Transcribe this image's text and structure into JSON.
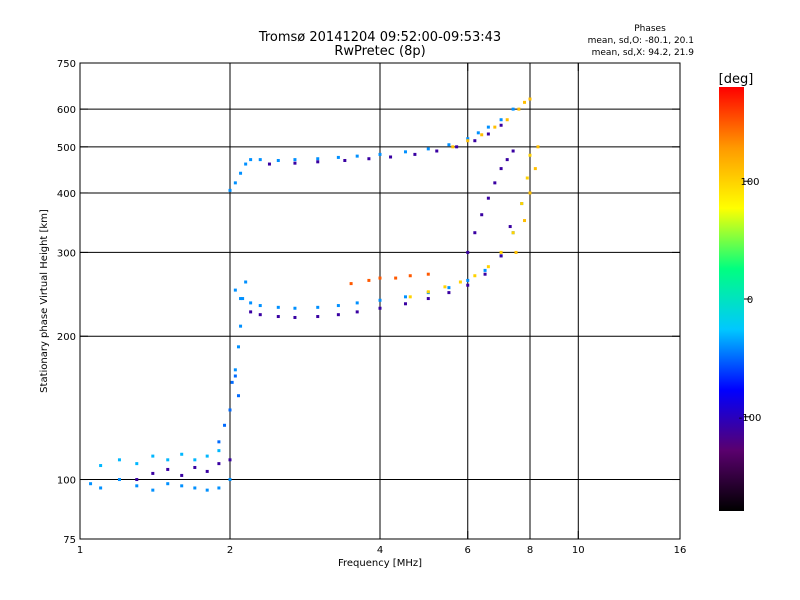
{
  "chart_data": {
    "type": "scatter",
    "title": "Tromsø 20141204 09:52:00-09:53:43",
    "subtitle": "RwPretec (8p)",
    "xlabel": "Frequency [MHz]",
    "ylabel": "Stationary phase Virtual Height [km]",
    "x_scale": "log2",
    "y_scale": "log",
    "xlim": [
      1,
      16
    ],
    "ylim": [
      75,
      750
    ],
    "x_ticks": [
      1,
      2,
      4,
      6,
      8,
      10,
      16
    ],
    "y_ticks": [
      75,
      100,
      200,
      300,
      400,
      500,
      600,
      750
    ],
    "x_grid": [
      2,
      4,
      6,
      8,
      10
    ],
    "y_grid": [
      100,
      200,
      300,
      400,
      500,
      600
    ],
    "grid": true,
    "phases_info": {
      "heading": "Phases",
      "line_o": "mean, sd,O: -80.1, 20.1",
      "line_x": "mean, sd,X:  94.2, 21.9"
    },
    "colorbar": {
      "label": "[deg]",
      "range": [
        -180,
        180
      ],
      "ticks": [
        100,
        0,
        -100
      ],
      "colormap": [
        "#000000",
        "#5a006e",
        "#0000ff",
        "#00c8ff",
        "#00ff80",
        "#ffff00",
        "#ff9900",
        "#ff0000"
      ]
    },
    "series": [
      {
        "x": [
          1.05,
          1.1,
          1.2,
          1.3,
          1.4,
          1.5,
          1.6,
          1.7,
          1.8,
          1.9,
          2.0
        ],
        "y": [
          98,
          96,
          100,
          97,
          95,
          98,
          97,
          96,
          95,
          96,
          100
        ],
        "phase": -40
      },
      {
        "x": [
          1.1,
          1.2,
          1.3,
          1.4,
          1.5,
          1.6,
          1.7,
          1.8,
          1.9
        ],
        "y": [
          107,
          110,
          108,
          112,
          110,
          113,
          110,
          112,
          115
        ],
        "phase": -30
      },
      {
        "x": [
          1.3,
          1.4,
          1.5,
          1.6,
          1.7,
          1.8,
          1.9,
          2.0
        ],
        "y": [
          100,
          103,
          105,
          102,
          106,
          104,
          108,
          110
        ],
        "phase": -110
      },
      {
        "x": [
          1.9,
          1.95,
          2.0,
          2.02,
          2.05,
          2.08
        ],
        "y": [
          120,
          130,
          140,
          160,
          165,
          150
        ],
        "phase": -50
      },
      {
        "x": [
          2.05,
          2.08,
          2.1,
          2.12,
          2.15
        ],
        "y": [
          170,
          190,
          210,
          240,
          260
        ],
        "phase": -40
      },
      {
        "x": [
          2.0,
          2.05,
          2.1,
          2.15,
          2.2
        ],
        "y": [
          405,
          420,
          440,
          460,
          470
        ],
        "phase": -40
      },
      {
        "x": [
          2.3,
          2.5,
          2.7,
          3.0,
          3.3,
          3.6,
          4.0,
          4.5,
          5.0,
          5.5,
          6.0,
          6.3,
          6.6,
          7.0,
          7.4
        ],
        "y": [
          470,
          468,
          470,
          472,
          475,
          478,
          482,
          488,
          495,
          505,
          520,
          535,
          550,
          570,
          600
        ],
        "phase": -40
      },
      {
        "x": [
          2.4,
          2.7,
          3.0,
          3.4,
          3.8,
          4.2,
          4.7,
          5.2,
          5.7,
          6.2,
          6.6,
          7.0
        ],
        "y": [
          460,
          462,
          465,
          468,
          472,
          476,
          482,
          490,
          500,
          515,
          532,
          555
        ],
        "phase": -110
      },
      {
        "x": [
          5.6,
          6.0,
          6.4,
          6.8,
          7.2,
          7.6,
          7.8,
          8.0
        ],
        "y": [
          500,
          515,
          530,
          550,
          570,
          600,
          620,
          630
        ],
        "phase": 110
      },
      {
        "x": [
          2.05,
          2.1,
          2.2,
          2.3,
          2.5,
          2.7,
          3.0,
          3.3,
          3.6,
          4.0,
          4.5,
          5.0,
          5.5,
          6.0,
          6.5,
          7.0,
          7.4,
          7.7
        ],
        "y": [
          250,
          240,
          235,
          232,
          230,
          229,
          230,
          232,
          235,
          238,
          242,
          247,
          253,
          262,
          275,
          295,
          330,
          380
        ],
        "phase": -40
      },
      {
        "x": [
          2.2,
          2.3,
          2.5,
          2.7,
          3.0,
          3.3,
          3.6,
          4.0,
          4.5,
          5.0,
          5.5,
          6.0,
          6.5,
          7.0,
          7.3
        ],
        "y": [
          225,
          222,
          220,
          219,
          220,
          222,
          225,
          229,
          234,
          240,
          247,
          256,
          270,
          295,
          340
        ],
        "phase": -110
      },
      {
        "x": [
          3.5,
          3.8,
          4.0,
          4.3,
          4.6,
          5.0
        ],
        "y": [
          258,
          262,
          265,
          265,
          268,
          270
        ],
        "phase": 150
      },
      {
        "x": [
          4.6,
          5.0,
          5.4,
          5.8,
          6.2,
          6.6,
          7.0,
          7.4,
          7.7,
          7.9,
          8.0
        ],
        "y": [
          242,
          248,
          254,
          260,
          268,
          280,
          300,
          330,
          380,
          430,
          480
        ],
        "phase": 100
      },
      {
        "x": [
          6.0,
          6.2,
          6.4,
          6.6,
          6.8,
          7.0,
          7.2,
          7.4
        ],
        "y": [
          300,
          330,
          360,
          390,
          420,
          450,
          470,
          490
        ],
        "phase": -110
      },
      {
        "x": [
          7.5,
          7.8,
          8.0,
          8.2,
          8.3
        ],
        "y": [
          300,
          350,
          400,
          450,
          500
        ],
        "phase": 110
      }
    ]
  }
}
